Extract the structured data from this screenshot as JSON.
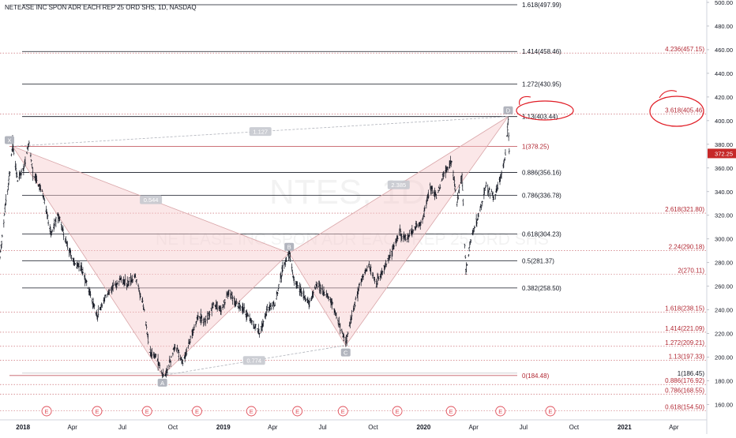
{
  "title": "NETEASE INC SPON ADR EACH REP 25 ORD SHS, 1D, NASDAQ",
  "watermark": {
    "ticker": "NTES, 1D",
    "name": "NETEASE INC SPON ADR EACH REP 25 ORD SHS"
  },
  "colors": {
    "up": "#26a69a",
    "down": "#ef5350",
    "bars": "#131722",
    "level_black": "#131722",
    "level_red": "#b22833",
    "pattern_fill": "#f7c9cb",
    "pattern_edge": "#d9a6a9",
    "earnings": "#e04f5a",
    "price_tag_bg": "#c62828",
    "highlight": "#e01b24"
  },
  "chart_data": {
    "type": "candlestick",
    "title": "NETEASE INC SPON ADR EACH REP 25 ORD SHS, 1D, NASDAQ",
    "y_axis": {
      "min": 155,
      "max": 500,
      "ticks": [
        160,
        180,
        200,
        220,
        240,
        260,
        280,
        300,
        320,
        340,
        360,
        380,
        400,
        420,
        440,
        460,
        480,
        500
      ],
      "tick_labels": [
        "160.00",
        "180.00",
        "200.00",
        "220.00",
        "240.00",
        "260.00",
        "280.00",
        "300.00",
        "320.00",
        "340.00",
        "360.00",
        "380.00",
        "400.00",
        "420.00",
        "440.00",
        "460.00",
        "480.00",
        "500.00"
      ]
    },
    "x_axis": {
      "start": "2017-11-20",
      "end": "2021-05-31",
      "ticks": [
        {
          "date": "2018-01-01",
          "label": "2018"
        },
        {
          "date": "2018-04-01",
          "label": "Apr"
        },
        {
          "date": "2018-07-01",
          "label": "Jul"
        },
        {
          "date": "2018-10-01",
          "label": "Oct"
        },
        {
          "date": "2019-01-01",
          "label": "2019"
        },
        {
          "date": "2019-04-01",
          "label": "Apr"
        },
        {
          "date": "2019-07-01",
          "label": "Jul"
        },
        {
          "date": "2019-10-01",
          "label": "Oct"
        },
        {
          "date": "2020-01-01",
          "label": "2020"
        },
        {
          "date": "2020-04-01",
          "label": "Apr"
        },
        {
          "date": "2020-07-01",
          "label": "Jul"
        },
        {
          "date": "2020-10-01",
          "label": "Oct"
        },
        {
          "date": "2021-01-01",
          "label": "2021"
        },
        {
          "date": "2021-04-01",
          "label": "Apr"
        }
      ]
    },
    "price_path": [
      {
        "date": "2017-11-20",
        "price": 285
      },
      {
        "date": "2017-11-28",
        "price": 320
      },
      {
        "date": "2017-12-05",
        "price": 345
      },
      {
        "date": "2017-12-13",
        "price": 380
      },
      {
        "date": "2017-12-22",
        "price": 350
      },
      {
        "date": "2018-01-02",
        "price": 360
      },
      {
        "date": "2018-01-12",
        "price": 380
      },
      {
        "date": "2018-01-19",
        "price": 355
      },
      {
        "date": "2018-02-05",
        "price": 340
      },
      {
        "date": "2018-02-21",
        "price": 305
      },
      {
        "date": "2018-03-06",
        "price": 320
      },
      {
        "date": "2018-03-19",
        "price": 300
      },
      {
        "date": "2018-04-03",
        "price": 280
      },
      {
        "date": "2018-04-18",
        "price": 275
      },
      {
        "date": "2018-05-02",
        "price": 255
      },
      {
        "date": "2018-05-16",
        "price": 235
      },
      {
        "date": "2018-05-30",
        "price": 250
      },
      {
        "date": "2018-06-13",
        "price": 260
      },
      {
        "date": "2018-06-27",
        "price": 265
      },
      {
        "date": "2018-07-11",
        "price": 262
      },
      {
        "date": "2018-07-25",
        "price": 268
      },
      {
        "date": "2018-08-08",
        "price": 245
      },
      {
        "date": "2018-08-20",
        "price": 205
      },
      {
        "date": "2018-09-01",
        "price": 200
      },
      {
        "date": "2018-09-12",
        "price": 185
      },
      {
        "date": "2018-09-21",
        "price": 188
      },
      {
        "date": "2018-10-05",
        "price": 210
      },
      {
        "date": "2018-10-19",
        "price": 195
      },
      {
        "date": "2018-11-02",
        "price": 215
      },
      {
        "date": "2018-11-16",
        "price": 235
      },
      {
        "date": "2018-11-30",
        "price": 230
      },
      {
        "date": "2018-12-14",
        "price": 245
      },
      {
        "date": "2018-12-28",
        "price": 240
      },
      {
        "date": "2019-01-11",
        "price": 255
      },
      {
        "date": "2019-01-25",
        "price": 245
      },
      {
        "date": "2019-02-08",
        "price": 240
      },
      {
        "date": "2019-02-22",
        "price": 230
      },
      {
        "date": "2019-03-08",
        "price": 220
      },
      {
        "date": "2019-03-22",
        "price": 240
      },
      {
        "date": "2019-04-05",
        "price": 245
      },
      {
        "date": "2019-04-19",
        "price": 275
      },
      {
        "date": "2019-05-01",
        "price": 288
      },
      {
        "date": "2019-05-10",
        "price": 265
      },
      {
        "date": "2019-05-24",
        "price": 255
      },
      {
        "date": "2019-06-07",
        "price": 245
      },
      {
        "date": "2019-06-21",
        "price": 262
      },
      {
        "date": "2019-07-05",
        "price": 255
      },
      {
        "date": "2019-07-19",
        "price": 245
      },
      {
        "date": "2019-08-02",
        "price": 225
      },
      {
        "date": "2019-08-12",
        "price": 212
      },
      {
        "date": "2019-08-26",
        "price": 240
      },
      {
        "date": "2019-09-09",
        "price": 265
      },
      {
        "date": "2019-09-23",
        "price": 278
      },
      {
        "date": "2019-10-07",
        "price": 262
      },
      {
        "date": "2019-10-21",
        "price": 275
      },
      {
        "date": "2019-11-04",
        "price": 290
      },
      {
        "date": "2019-11-18",
        "price": 305
      },
      {
        "date": "2019-12-02",
        "price": 300
      },
      {
        "date": "2019-12-16",
        "price": 310
      },
      {
        "date": "2019-12-30",
        "price": 315
      },
      {
        "date": "2020-01-13",
        "price": 345
      },
      {
        "date": "2020-01-24",
        "price": 335
      },
      {
        "date": "2020-02-07",
        "price": 355
      },
      {
        "date": "2020-02-21",
        "price": 365
      },
      {
        "date": "2020-03-02",
        "price": 330
      },
      {
        "date": "2020-03-11",
        "price": 355
      },
      {
        "date": "2020-03-18",
        "price": 272
      },
      {
        "date": "2020-03-27",
        "price": 300
      },
      {
        "date": "2020-04-10",
        "price": 320
      },
      {
        "date": "2020-04-24",
        "price": 345
      },
      {
        "date": "2020-05-08",
        "price": 335
      },
      {
        "date": "2020-05-22",
        "price": 355
      },
      {
        "date": "2020-05-29",
        "price": 370
      },
      {
        "date": "2020-06-03",
        "price": 400
      },
      {
        "date": "2020-06-05",
        "price": 372.25
      }
    ],
    "harmonic_pattern": {
      "points": [
        {
          "label": "X",
          "date": "2017-12-13",
          "price": 378.25
        },
        {
          "label": "A",
          "date": "2018-09-12",
          "price": 184.48
        },
        {
          "label": "B",
          "date": "2019-05-01",
          "price": 288.0
        },
        {
          "label": "C",
          "date": "2019-08-12",
          "price": 210.0
        },
        {
          "label": "D",
          "date": "2020-06-03",
          "price": 403.44
        }
      ],
      "ratios": [
        {
          "label": "1.127",
          "between": [
            "X",
            "D"
          ]
        },
        {
          "label": "0.544",
          "between": [
            "X",
            "B"
          ]
        },
        {
          "label": "0.774",
          "between": [
            "A",
            "C"
          ]
        },
        {
          "label": "2.385",
          "between": [
            "B",
            "D"
          ]
        }
      ]
    },
    "fib_levels_black": [
      {
        "label": "1.618(497.99)",
        "price": 497.99
      },
      {
        "label": "1.414(458.46)",
        "price": 458.46
      },
      {
        "label": "1.272(430.95)",
        "price": 430.95
      },
      {
        "label": "1.13(403.44)",
        "price": 403.44
      },
      {
        "label": "0.886(356.16)",
        "price": 356.16
      },
      {
        "label": "0.786(336.78)",
        "price": 336.78
      },
      {
        "label": "0.618(304.23)",
        "price": 304.23
      },
      {
        "label": "0.5(281.37)",
        "price": 281.37
      },
      {
        "label": "0.382(258.50)",
        "price": 258.5
      },
      {
        "label": "1(186.45)",
        "price": 186.45
      }
    ],
    "fib_levels_red_left": [
      {
        "label": "1(378.25)",
        "price": 378.25
      },
      {
        "label": "0(184.48)",
        "price": 184.48
      }
    ],
    "fib_levels_red_right": [
      {
        "label": "4.236(457.15)",
        "price": 457.15
      },
      {
        "label": "3.618(405.46)",
        "price": 405.46
      },
      {
        "label": "2.618(321.80)",
        "price": 321.8
      },
      {
        "label": "2.24(290.18)",
        "price": 290.18
      },
      {
        "label": "2(270.11)",
        "price": 270.11
      },
      {
        "label": "1.618(238.15)",
        "price": 238.15
      },
      {
        "label": "1.414(221.09)",
        "price": 221.09
      },
      {
        "label": "1.272(209.21)",
        "price": 209.21
      },
      {
        "label": "1.13(197.33)",
        "price": 197.33
      },
      {
        "label": "0.886(176.92)",
        "price": 176.92
      },
      {
        "label": "0.786(168.55)",
        "price": 168.55
      },
      {
        "label": "0.618(154.50)",
        "price": 154.5
      }
    ],
    "last_price": {
      "label": "372.25",
      "price": 372.25
    },
    "earnings_markers": {
      "label": "E",
      "dates": [
        "2017-11-16",
        "2018-02-13",
        "2018-05-16",
        "2018-08-15",
        "2018-11-14",
        "2019-02-21",
        "2019-05-16",
        "2019-08-07",
        "2019-11-14",
        "2020-02-20",
        "2020-05-20",
        "2020-08-19"
      ]
    },
    "highlighted_labels": [
      "1.13(403.44)",
      "3.618(405.46)"
    ]
  }
}
